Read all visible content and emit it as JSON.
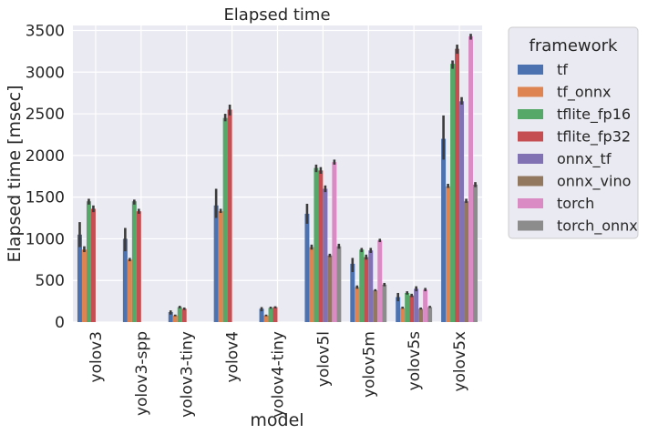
{
  "chart_data": {
    "type": "bar",
    "title": "Elapsed time",
    "xlabel": "model",
    "ylabel": "Elapsed time [msec]",
    "ylim": [
      0,
      3560
    ],
    "yticks": [
      0,
      500,
      1000,
      1500,
      2000,
      2500,
      3000,
      3500
    ],
    "grid": true,
    "legend_title": "framework",
    "legend_placement": "outside-right",
    "categories": [
      "yolov3",
      "yolov3-spp",
      "yolov3-tiny",
      "yolov4",
      "yolov4-tiny",
      "yolov5l",
      "yolov5m",
      "yolov5s",
      "yolov5x"
    ],
    "series": [
      {
        "name": "tf",
        "color": "#4c72b0",
        "values": [
          1050,
          1000,
          120,
          1400,
          160,
          1300,
          700,
          300,
          2200
        ],
        "err": [
          [
            900,
            1200
          ],
          [
            850,
            1130
          ],
          [
            90,
            140
          ],
          [
            1250,
            1600
          ],
          [
            130,
            180
          ],
          [
            1180,
            1420
          ],
          [
            600,
            770
          ],
          [
            250,
            350
          ],
          [
            1950,
            2480
          ]
        ]
      },
      {
        "name": "tf_onnx",
        "color": "#dd8452",
        "values": [
          870,
          750,
          80,
          1330,
          80,
          900,
          420,
          170,
          1630
        ],
        "err": [
          [
            840,
            910
          ],
          [
            730,
            770
          ],
          [
            70,
            90
          ],
          [
            1310,
            1360
          ],
          [
            70,
            90
          ],
          [
            870,
            930
          ],
          [
            400,
            440
          ],
          [
            160,
            185
          ],
          [
            1610,
            1660
          ]
        ]
      },
      {
        "name": "tflite_fp16",
        "color": "#55a868",
        "values": [
          1450,
          1450,
          180,
          2450,
          170,
          1850,
          870,
          350,
          3100
        ],
        "err": [
          [
            1410,
            1480
          ],
          [
            1410,
            1470
          ],
          [
            165,
            195
          ],
          [
            2410,
            2500
          ],
          [
            160,
            185
          ],
          [
            1800,
            1890
          ],
          [
            840,
            890
          ],
          [
            330,
            370
          ],
          [
            3040,
            3140
          ]
        ]
      },
      {
        "name": "tflite_fp32",
        "color": "#c44e52",
        "values": [
          1360,
          1330,
          160,
          2550,
          180,
          1820,
          780,
          320,
          3280
        ],
        "err": [
          [
            1320,
            1400
          ],
          [
            1300,
            1360
          ],
          [
            145,
            175
          ],
          [
            2480,
            2610
          ],
          [
            165,
            190
          ],
          [
            1780,
            1860
          ],
          [
            750,
            810
          ],
          [
            300,
            340
          ],
          [
            3220,
            3330
          ]
        ]
      },
      {
        "name": "onnx_tf",
        "color": "#8172b3",
        "values": [
          0,
          0,
          0,
          0,
          0,
          1600,
          860,
          400,
          2650
        ],
        "err": [
          [
            0,
            0
          ],
          [
            0,
            0
          ],
          [
            0,
            0
          ],
          [
            0,
            0
          ],
          [
            0,
            0
          ],
          [
            1560,
            1640
          ],
          [
            830,
            890
          ],
          [
            370,
            430
          ],
          [
            2610,
            2700
          ]
        ]
      },
      {
        "name": "onnx_vino",
        "color": "#937860",
        "values": [
          0,
          0,
          0,
          0,
          0,
          800,
          380,
          160,
          1450
        ],
        "err": [
          [
            0,
            0
          ],
          [
            0,
            0
          ],
          [
            0,
            0
          ],
          [
            0,
            0
          ],
          [
            0,
            0
          ],
          [
            780,
            820
          ],
          [
            370,
            395
          ],
          [
            150,
            175
          ],
          [
            1430,
            1480
          ]
        ]
      },
      {
        "name": "torch",
        "color": "#da8bc3",
        "values": [
          0,
          0,
          0,
          0,
          0,
          1920,
          980,
          390,
          3430
        ],
        "err": [
          [
            0,
            0
          ],
          [
            0,
            0
          ],
          [
            0,
            0
          ],
          [
            0,
            0
          ],
          [
            0,
            0
          ],
          [
            1890,
            1950
          ],
          [
            960,
            1000
          ],
          [
            370,
            410
          ],
          [
            3390,
            3460
          ]
        ]
      },
      {
        "name": "torch_onnx",
        "color": "#8c8c8c",
        "values": [
          0,
          0,
          0,
          0,
          0,
          910,
          450,
          180,
          1650
        ],
        "err": [
          [
            0,
            0
          ],
          [
            0,
            0
          ],
          [
            0,
            0
          ],
          [
            0,
            0
          ],
          [
            0,
            0
          ],
          [
            880,
            940
          ],
          [
            430,
            470
          ],
          [
            170,
            195
          ],
          [
            1620,
            1680
          ]
        ]
      }
    ]
  }
}
